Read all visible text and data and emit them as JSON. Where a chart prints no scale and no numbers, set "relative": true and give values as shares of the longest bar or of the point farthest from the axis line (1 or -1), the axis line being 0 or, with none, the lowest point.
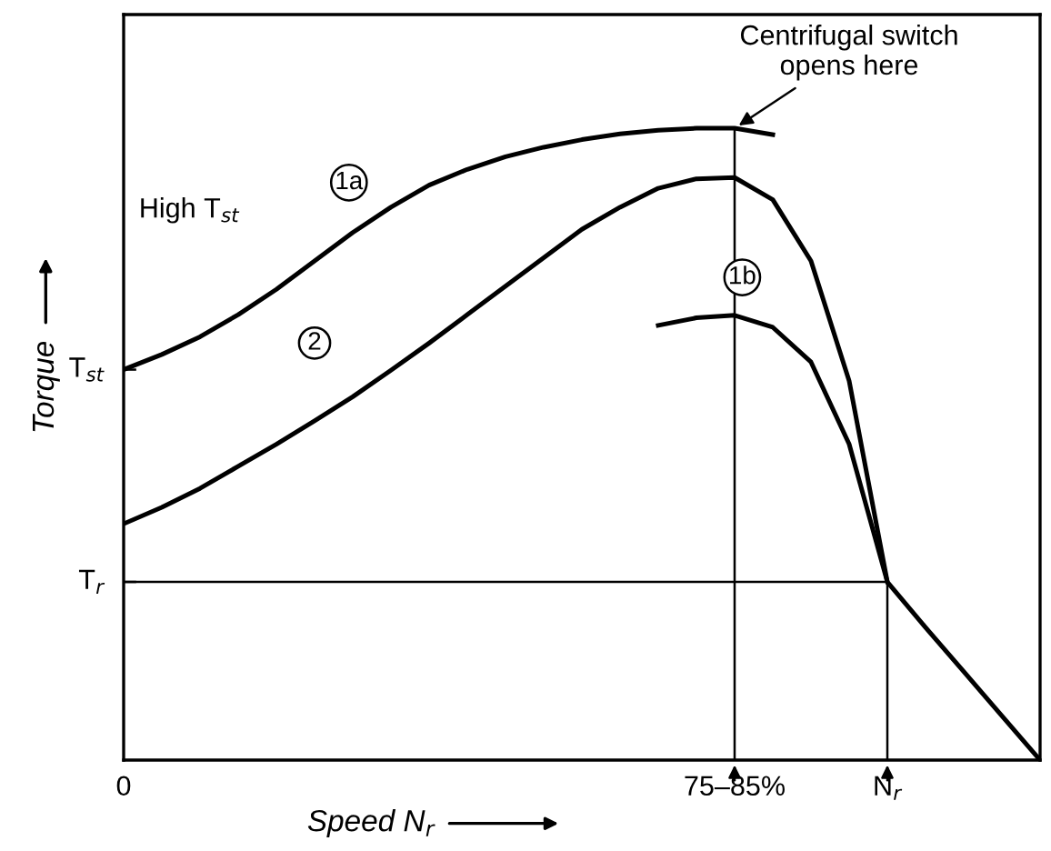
{
  "chart_data": {
    "type": "line",
    "relative": true,
    "xlabel": "Speed N$_{r}$",
    "ylabel": "Torque",
    "categories": [
      "0",
      null,
      null,
      null,
      null,
      null,
      null,
      null,
      null,
      null,
      null,
      null,
      null,
      null,
      null,
      null,
      "75–85%",
      null,
      null,
      null,
      "N$_{r}$",
      null,
      null,
      null,
      null
    ],
    "series": [
      {
        "color": "#000000",
        "values": [
          0.618,
          0.642,
          0.67,
          0.705,
          0.745,
          0.79,
          0.835,
          0.875,
          0.91,
          0.935,
          0.955,
          0.97,
          0.982,
          0.991,
          0.997,
          1.0,
          1.0,
          0.99,
          null,
          null,
          null,
          null,
          null,
          null,
          null
        ]
      },
      {
        "color": "#000000",
        "values": [
          0.374,
          0.4,
          0.43,
          0.465,
          0.5,
          0.537,
          0.575,
          0.617,
          0.66,
          0.705,
          0.75,
          0.795,
          0.84,
          0.875,
          0.905,
          0.92,
          0.922,
          0.887,
          0.79,
          0.6,
          0.282,
          0.21,
          0.14,
          0.07,
          0
        ]
      },
      {
        "color": "#000000",
        "values": [
          null,
          null,
          null,
          null,
          null,
          null,
          null,
          null,
          null,
          null,
          null,
          null,
          null,
          null,
          0.688,
          0.7,
          0.704,
          0.685,
          0.63,
          0.5,
          0.282,
          null,
          null,
          null,
          null
        ]
      }
    ],
    "ref_lines": [
      {
        "axis": "y",
        "value": 0.282,
        "label": "T$_{r}$"
      },
      {
        "axis": "x",
        "value": "75–85%"
      },
      {
        "axis": "x",
        "value": "N$_{r}$"
      }
    ],
    "annotations": [
      "High T$_{st}$",
      "Centrifugal switch\nopens here",
      "1a",
      "2",
      "1b",
      {
        "text": "T$_{st}$",
        "x": "0",
        "y": 0.618
      }
    ],
    "grid": false,
    "legend": false,
    "marker": "none",
    "line_style": "solid"
  }
}
